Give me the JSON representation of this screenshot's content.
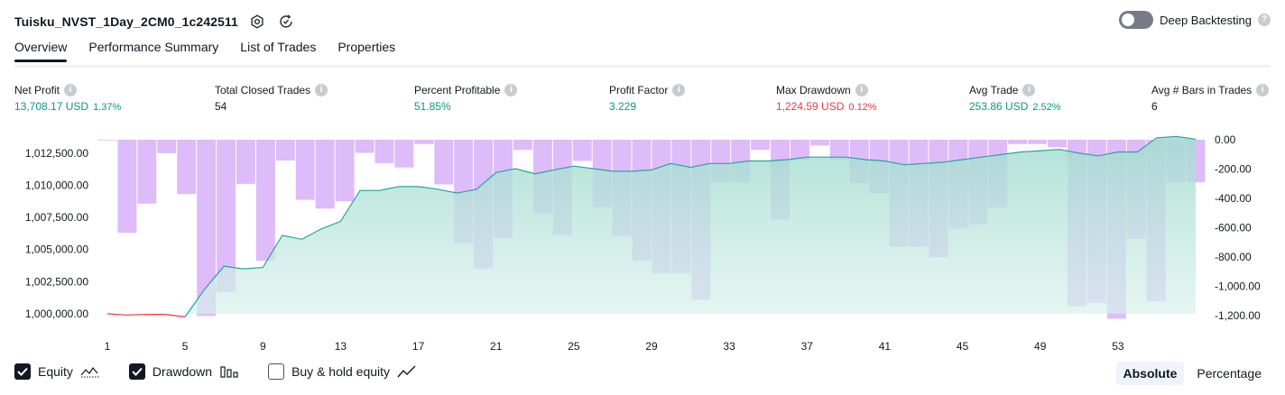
{
  "header": {
    "title": "Tuisku_NVST_1Day_2CM0_1c242511",
    "deep_backtesting_label": "Deep Backtesting",
    "deep_backtesting_on": false
  },
  "tabs": [
    {
      "label": "Overview",
      "active": true
    },
    {
      "label": "Performance Summary",
      "active": false
    },
    {
      "label": "List of Trades",
      "active": false
    },
    {
      "label": "Properties",
      "active": false
    }
  ],
  "metrics": [
    {
      "label": "Net Profit",
      "value": "13,708.17 USD",
      "pct": "1.37%",
      "tone": "green"
    },
    {
      "label": "Total Closed Trades",
      "value": "54",
      "pct": "",
      "tone": "dark"
    },
    {
      "label": "Percent Profitable",
      "value": "51.85%",
      "pct": "",
      "tone": "green"
    },
    {
      "label": "Profit Factor",
      "value": "3.229",
      "pct": "",
      "tone": "green"
    },
    {
      "label": "Max Drawdown",
      "value": "1,224.59 USD",
      "pct": "0.12%",
      "tone": "red"
    },
    {
      "label": "Avg Trade",
      "value": "253.86 USD",
      "pct": "2.52%",
      "tone": "green"
    },
    {
      "label": "Avg # Bars in Trades",
      "value": "6",
      "pct": "",
      "tone": "dark"
    }
  ],
  "chart_data": {
    "type": "line+bar",
    "x_ticks": [
      1,
      5,
      9,
      13,
      17,
      21,
      25,
      29,
      33,
      37,
      41,
      45,
      49,
      53
    ],
    "left_axis": {
      "ticks": [
        1000000,
        1002500,
        1005000,
        1007500,
        1010000,
        1012500
      ],
      "tick_labels": [
        "1,000,000.00",
        "1,002,500.00",
        "1,005,000.00",
        "1,007,500.00",
        "1,010,000.00",
        "1,012,500.00"
      ],
      "range": [
        999500,
        1013900
      ]
    },
    "right_axis": {
      "ticks": [
        0,
        -200,
        -400,
        -600,
        -800,
        -1000,
        -1200
      ],
      "tick_labels": [
        "0.00",
        "-200.00",
        "-400.00",
        "-600.00",
        "-800.00",
        "-1,000.00",
        "-1,200.00"
      ],
      "range": [
        -1230,
        30
      ]
    },
    "series": [
      {
        "name": "Equity",
        "color_profit": "#26a69a",
        "color_loss": "#f23645",
        "values": [
          1000000,
          999900,
          999950,
          999950,
          999750,
          1001900,
          1003700,
          1003500,
          1003600,
          1006100,
          1005800,
          1006600,
          1007200,
          1009600,
          1009600,
          1009900,
          1009900,
          1009700,
          1009400,
          1009700,
          1011000,
          1011300,
          1010900,
          1011200,
          1011500,
          1011300,
          1011100,
          1011100,
          1011200,
          1011700,
          1011400,
          1011700,
          1011700,
          1011900,
          1011900,
          1012000,
          1012200,
          1012200,
          1012200,
          1012000,
          1011900,
          1011600,
          1011700,
          1011800,
          1012000,
          1012200,
          1012400,
          1012600,
          1012700,
          1012800,
          1012500,
          1012300,
          1012600,
          1012600,
          1013700,
          1013800,
          1013600
        ]
      },
      {
        "name": "Drawdown",
        "color": "#cf9ff6",
        "values": [
          -5,
          -634,
          -436,
          -92,
          -371,
          -1202,
          -1040,
          -301,
          -826,
          -142,
          -410,
          -470,
          -420,
          -90,
          -160,
          -190,
          -30,
          -305,
          -705,
          -880,
          -670,
          -70,
          -505,
          -650,
          -145,
          -460,
          -660,
          -825,
          -910,
          -910,
          -1090,
          -292,
          -292,
          -70,
          -545,
          -140,
          -40,
          -140,
          -296,
          -367,
          -728,
          -728,
          -800,
          -606,
          -578,
          -463,
          -30,
          -30,
          -50,
          -1135,
          -1113,
          -1220,
          -675,
          -1100,
          -290,
          -290
        ]
      }
    ]
  },
  "legend": [
    {
      "label": "Equity",
      "checked": true,
      "glyph": "equity-line-icon"
    },
    {
      "label": "Drawdown",
      "checked": true,
      "glyph": "drawdown-bars-icon"
    },
    {
      "label": "Buy & hold equity",
      "checked": false,
      "glyph": "buy-hold-line-icon"
    }
  ],
  "modes": [
    {
      "label": "Absolute",
      "active": true
    },
    {
      "label": "Percentage",
      "active": false
    }
  ]
}
